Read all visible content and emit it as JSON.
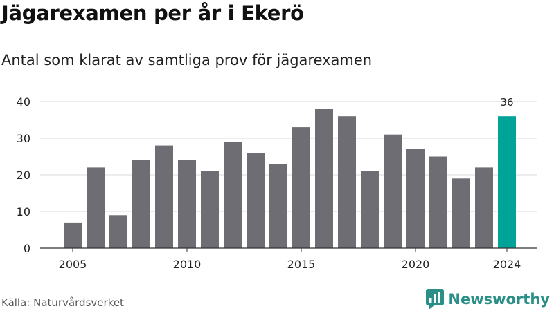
{
  "title": "Jägarexamen per år i Ekerö",
  "subtitle": "Antal som klarat av samtliga prov för jägarexamen",
  "source": "Källa: Naturvårdsverket",
  "brand": {
    "name": "Newsworthy",
    "logo_icon": "newsworthy-bar-chart-icon"
  },
  "colors": {
    "bar": "#6e6d73",
    "highlight": "#00a398",
    "grid": "#d9d9d9",
    "brand": "#2a8f87"
  },
  "chart_data": {
    "type": "bar",
    "title": "Jägarexamen per år i Ekerö",
    "subtitle": "Antal som klarat av samtliga prov för jägarexamen",
    "xlabel": "",
    "ylabel": "",
    "categories": [
      2005,
      2006,
      2007,
      2008,
      2009,
      2010,
      2011,
      2012,
      2013,
      2014,
      2015,
      2016,
      2017,
      2018,
      2019,
      2020,
      2021,
      2022,
      2023,
      2024
    ],
    "values": [
      7,
      22,
      9,
      24,
      28,
      24,
      21,
      29,
      26,
      23,
      33,
      38,
      36,
      21,
      31,
      27,
      25,
      19,
      22,
      36
    ],
    "highlight_category": 2024,
    "value_labels": [
      {
        "category": 2024,
        "text": "36"
      }
    ],
    "xticks": [
      2005,
      2010,
      2015,
      2020,
      2024
    ],
    "yticks": [
      0,
      10,
      20,
      30,
      40
    ],
    "ylim": [
      0,
      40
    ],
    "grid": "horizontal",
    "legend": "none"
  }
}
